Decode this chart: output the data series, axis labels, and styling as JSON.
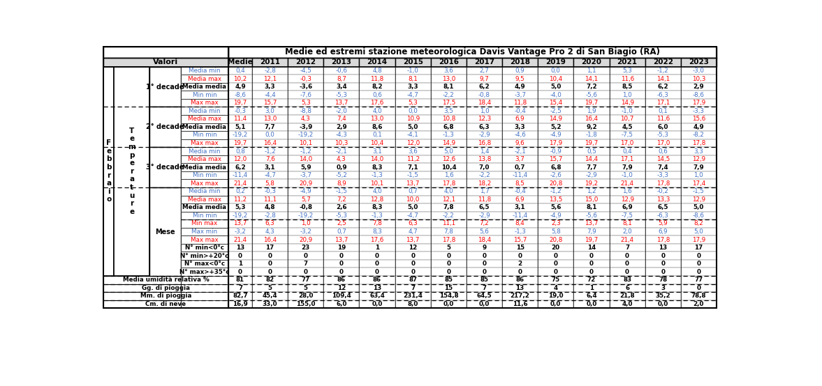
{
  "title": "Medie ed estremi stazione meteorologica Davis Vantage Pro 2 di San Biagio (RA)",
  "col_headers": [
    "Medie",
    "2011",
    "2012",
    "2013",
    "2014",
    "2015",
    "2016",
    "2017",
    "2018",
    "2019",
    "2020",
    "2021",
    "2022",
    "2023"
  ],
  "row_labels_col4": [
    "Media min",
    "Media max",
    "Media media",
    "Min min",
    "Max max",
    "Media min",
    "Media max",
    "Media media",
    "Min min",
    "Max max",
    "Media min",
    "Media max",
    "Media media",
    "Min min",
    "Max max",
    "Media min",
    "Media max",
    "Media media",
    "Min min",
    "Min max",
    "Max min",
    "Max max",
    "N° min<0°c",
    "N° min>+20°c",
    "N° max<0°c",
    "N° max>+35°c",
    "Media umidità relativa %",
    "Gg. di pioggia",
    "Mm. di pioggia",
    "Cm. di neve"
  ],
  "row_colors_col4": [
    "blue",
    "red",
    "black",
    "blue",
    "red",
    "blue",
    "red",
    "black",
    "blue",
    "red",
    "blue",
    "red",
    "black",
    "blue",
    "red",
    "blue",
    "red",
    "black",
    "blue",
    "red",
    "blue",
    "red",
    "black",
    "black",
    "black",
    "black",
    "black",
    "black",
    "black",
    "black"
  ],
  "data": [
    [
      "0,4",
      "-2,8",
      "-4,5",
      "-0,6",
      "4,8",
      "-1,0",
      "3,6",
      "2,7",
      "0,9",
      "0,0",
      "1,1",
      "5,3",
      "-1,2",
      "-3,0"
    ],
    [
      "10,2",
      "12,1",
      "-0,3",
      "8,7",
      "11,8",
      "8,1",
      "13,0",
      "9,7",
      "9,5",
      "10,4",
      "14,1",
      "11,6",
      "14,1",
      "10,3"
    ],
    [
      "4,9",
      "3,3",
      "-3,6",
      "3,4",
      "8,2",
      "3,3",
      "8,1",
      "6,2",
      "4,9",
      "5,0",
      "7,2",
      "8,5",
      "6,2",
      "2,9"
    ],
    [
      "-8,6",
      "-4,4",
      "-7,6",
      "-5,3",
      "0,6",
      "-4,7",
      "-2,2",
      "-0,8",
      "-3,7",
      "-4,0",
      "-5,6",
      "1,0",
      "-6,3",
      "-8,6"
    ],
    [
      "19,7",
      "15,7",
      "5,3",
      "13,7",
      "17,6",
      "5,3",
      "17,5",
      "18,4",
      "11,8",
      "15,4",
      "19,7",
      "14,9",
      "17,1",
      "17,9"
    ],
    [
      "-0,3",
      "3,0",
      "-8,8",
      "-2,0",
      "4,0",
      "0,0",
      "3,5",
      "1,0",
      "-0,4",
      "-2,5",
      "1,9",
      "-1,0",
      "0,1",
      "-3,3"
    ],
    [
      "11,4",
      "13,0",
      "4,3",
      "7,4",
      "13,0",
      "10,9",
      "10,8",
      "12,3",
      "6,9",
      "14,9",
      "16,4",
      "10,7",
      "11,6",
      "15,6"
    ],
    [
      "5,1",
      "7,7",
      "-3,9",
      "2,9",
      "8,6",
      "5,0",
      "6,8",
      "6,3",
      "3,3",
      "5,2",
      "9,2",
      "4,5",
      "6,0",
      "4,9"
    ],
    [
      "-19,2",
      "0,0",
      "-19,2",
      "-4,3",
      "0,1",
      "-4,1",
      "-1,3",
      "-2,9",
      "-4,6",
      "-4,9",
      "-1,8",
      "-7,5",
      "-5,3",
      "-8,2"
    ],
    [
      "19,7",
      "16,4",
      "10,1",
      "10,3",
      "10,4",
      "12,0",
      "14,9",
      "16,8",
      "9,6",
      "17,9",
      "19,7",
      "17,0",
      "17,0",
      "17,8"
    ],
    [
      "0,8",
      "-1,2",
      "-1,2",
      "-2,1",
      "3,1",
      "3,6",
      "5,0",
      "1,4",
      "-2,1",
      "-0,9",
      "0,5",
      "0,4",
      "0,6",
      "3,3"
    ],
    [
      "12,0",
      "7,6",
      "14,0",
      "4,3",
      "14,0",
      "11,2",
      "12,6",
      "13,8",
      "3,7",
      "15,7",
      "14,4",
      "17,1",
      "14,5",
      "12,9"
    ],
    [
      "6,2",
      "3,1",
      "5,9",
      "0,9",
      "8,3",
      "7,1",
      "10,4",
      "7,0",
      "0,7",
      "6,8",
      "7,7",
      "7,9",
      "7,4",
      "7,9"
    ],
    [
      "-11,4",
      "-4,7",
      "-3,7",
      "-5,2",
      "-1,3",
      "-1,5",
      "1,6",
      "-2,2",
      "-11,4",
      "-2,6",
      "-2,9",
      "-1,0",
      "-3,3",
      "1,0"
    ],
    [
      "21,4",
      "5,8",
      "20,9",
      "8,9",
      "10,1",
      "13,7",
      "17,8",
      "18,2",
      "8,5",
      "20,8",
      "19,2",
      "21,4",
      "17,8",
      "17,4"
    ],
    [
      "0,2",
      "-0,3",
      "-4,9",
      "-1,5",
      "4,0",
      "0,7",
      "4,0",
      "1,7",
      "-0,4",
      "-1,2",
      "1,2",
      "1,6",
      "-0,2",
      "-1,5"
    ],
    [
      "11,2",
      "11,1",
      "5,7",
      "7,2",
      "12,8",
      "10,0",
      "12,1",
      "11,8",
      "6,9",
      "13,5",
      "15,0",
      "12,9",
      "13,3",
      "12,9"
    ],
    [
      "5,3",
      "4,8",
      "-0,8",
      "2,6",
      "8,3",
      "5,0",
      "7,8",
      "6,5",
      "3,1",
      "5,6",
      "8,1",
      "6,9",
      "6,5",
      "5,0"
    ],
    [
      "-19,2",
      "-2,8",
      "-19,2",
      "-5,3",
      "-1,3",
      "-4,7",
      "-2,2",
      "-2,9",
      "-11,4",
      "-4,9",
      "-5,6",
      "-7,5",
      "-6,3",
      "-8,6"
    ],
    [
      "13,7",
      "6,3",
      "1,0",
      "2,5",
      "7,8",
      "6,3",
      "11,1",
      "7,2",
      "8,4",
      "2,3",
      "13,7",
      "8,1",
      "5,9",
      "8,2"
    ],
    [
      "-3,2",
      "4,3",
      "-3,2",
      "0,7",
      "8,3",
      "4,7",
      "7,8",
      "5,6",
      "-1,3",
      "5,8",
      "7,9",
      "2,0",
      "6,9",
      "5,0"
    ],
    [
      "21,4",
      "16,4",
      "20,9",
      "13,7",
      "17,6",
      "13,7",
      "17,8",
      "18,4",
      "15,7",
      "20,8",
      "19,7",
      "21,4",
      "17,8",
      "17,9"
    ],
    [
      "13",
      "17",
      "23",
      "19",
      "1",
      "12",
      "5",
      "9",
      "15",
      "20",
      "14",
      "7",
      "13",
      "17"
    ],
    [
      "0",
      "0",
      "0",
      "0",
      "0",
      "0",
      "0",
      "0",
      "0",
      "0",
      "0",
      "0",
      "0",
      "0"
    ],
    [
      "1",
      "0",
      "7",
      "0",
      "0",
      "0",
      "0",
      "0",
      "2",
      "0",
      "0",
      "0",
      "0",
      "0"
    ],
    [
      "0",
      "0",
      "0",
      "0",
      "0",
      "0",
      "0",
      "0",
      "0",
      "0",
      "0",
      "0",
      "0",
      "0"
    ],
    [
      "81",
      "82",
      "77",
      "86",
      "86",
      "87",
      "85",
      "85",
      "86",
      "75",
      "72",
      "83",
      "78",
      "77"
    ],
    [
      "7",
      "5",
      "5",
      "12",
      "13",
      "7",
      "15",
      "7",
      "13",
      "4",
      "1",
      "6",
      "3",
      "0"
    ],
    [
      "82,7",
      "45,4",
      "28,0",
      "109,4",
      "63,4",
      "231,4",
      "154,8",
      "64,5",
      "217,2",
      "19,0",
      "6,4",
      "21,8",
      "35,2",
      "78,8"
    ],
    [
      "16,9",
      "33,0",
      "155,0",
      "6,0",
      "0,0",
      "8,0",
      "0,0",
      "0,0",
      "11,6",
      "0,0",
      "0,0",
      "4,0",
      "0,0",
      "2,0"
    ]
  ],
  "color_blue": "#4472C4",
  "color_red": "#FF0000",
  "color_black": "#000000",
  "color_header_bg": "#D9D9D9",
  "color_white": "#FFFFFF",
  "color_border": "#000000",
  "color_dashed": "#888888"
}
